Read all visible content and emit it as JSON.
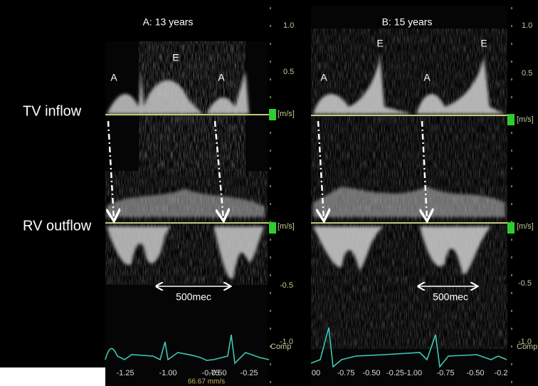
{
  "row_labels": [
    "TV inflow",
    "RV outflow"
  ],
  "panels": [
    {
      "title": "A: 13 years",
      "wave_labels": [
        "A",
        "E",
        "A"
      ],
      "interval_label": "500mec",
      "scale_labels": [
        "1.0",
        "0.5",
        "[m/s]",
        "[m/s]",
        "-0.5",
        "-1.0",
        "Comp"
      ],
      "time_labels": [
        "-1.25",
        "-1.00",
        "-0.75",
        "-0.50",
        "-0.25"
      ],
      "sweep_speed": "66.67 mm/s"
    },
    {
      "title": "B: 15 years",
      "wave_labels": [
        "A",
        "E",
        "A",
        "E"
      ],
      "interval_label": "500mec",
      "scale_labels": [
        "1.0",
        "0.5",
        "[m/s]",
        "[m/s]",
        "-0.5",
        "-1.0",
        "Comp"
      ],
      "time_labels": [
        "00",
        "-0.75",
        "-0.50",
        "-0.25-1.00",
        "-0.75",
        "-0.50",
        "-0.2"
      ]
    }
  ]
}
